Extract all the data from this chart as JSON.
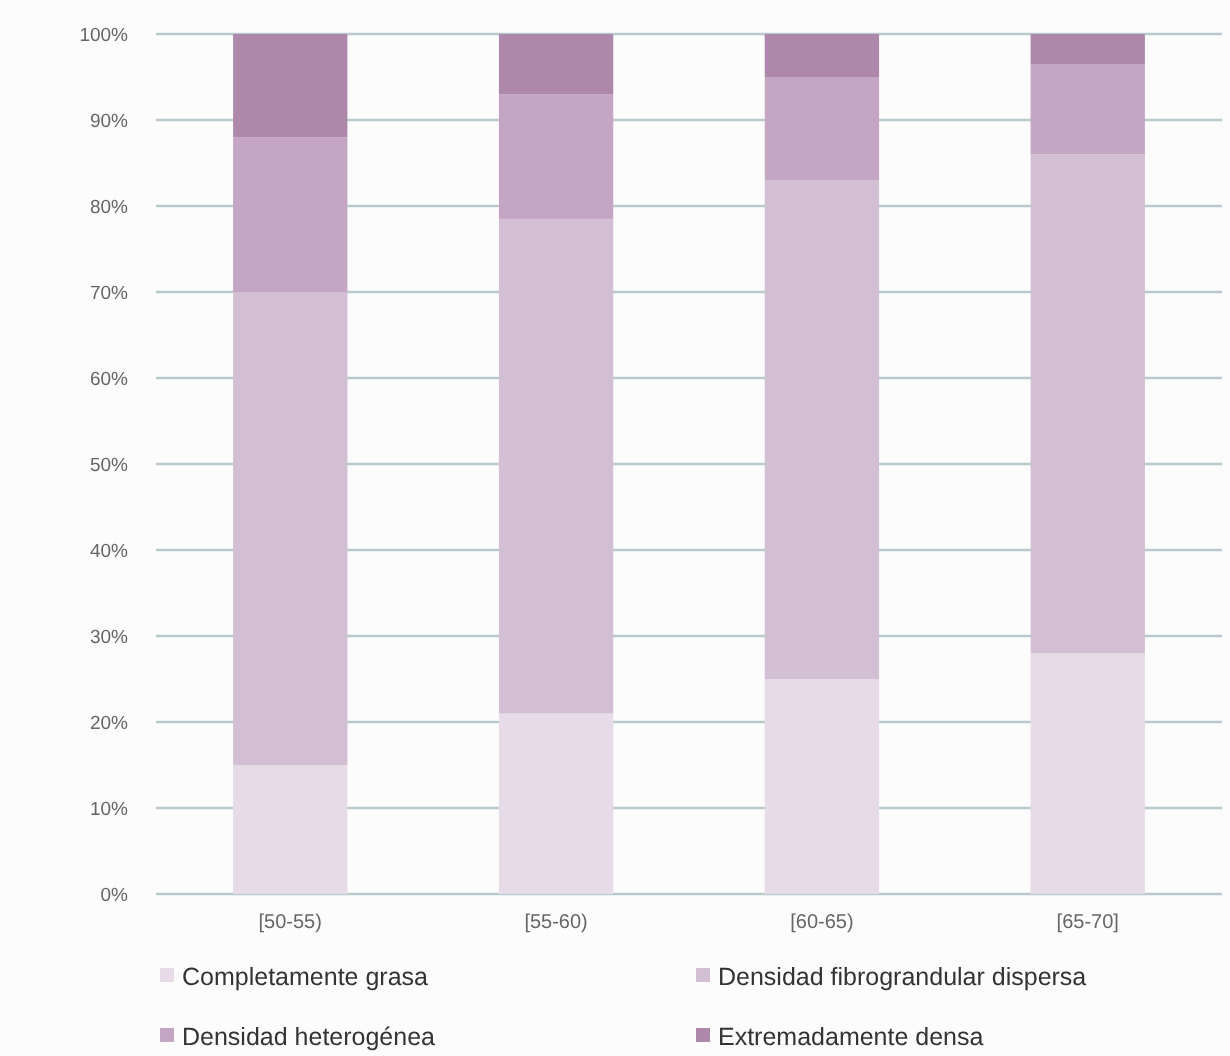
{
  "chart_data": {
    "type": "bar",
    "stacked": true,
    "categories": [
      "[50-55)",
      "[55-60)",
      "[60-65)",
      "[65-70]"
    ],
    "series": [
      {
        "name": "Completamente grasa",
        "color": "#e6dbe6",
        "values": [
          15,
          21,
          25,
          28
        ]
      },
      {
        "name": "Densidad fibrograndular dispersa",
        "color": "#d3bfd3",
        "values": [
          55,
          57.5,
          58,
          58
        ]
      },
      {
        "name": "Densidad heterogénea",
        "color": "#c4a5c4",
        "values": [
          18,
          14.5,
          12,
          10.5
        ]
      },
      {
        "name": "Extremadamente densa",
        "color": "#ad88aa",
        "values": [
          12,
          7,
          5,
          3.5
        ]
      }
    ],
    "ylim": [
      0,
      100
    ],
    "yticks": [
      {
        "value": 0,
        "label": "0%"
      },
      {
        "value": 10,
        "label": "10%"
      },
      {
        "value": 20,
        "label": "20%"
      },
      {
        "value": 30,
        "label": "30%"
      },
      {
        "value": 40,
        "label": "40%"
      },
      {
        "value": 50,
        "label": "50%"
      },
      {
        "value": 60,
        "label": "60%"
      },
      {
        "value": 70,
        "label": "70%"
      },
      {
        "value": 80,
        "label": "80%"
      },
      {
        "value": 90,
        "label": "90%"
      },
      {
        "value": 100,
        "label": "100%"
      }
    ],
    "grid": "y",
    "legend": "bottom"
  }
}
